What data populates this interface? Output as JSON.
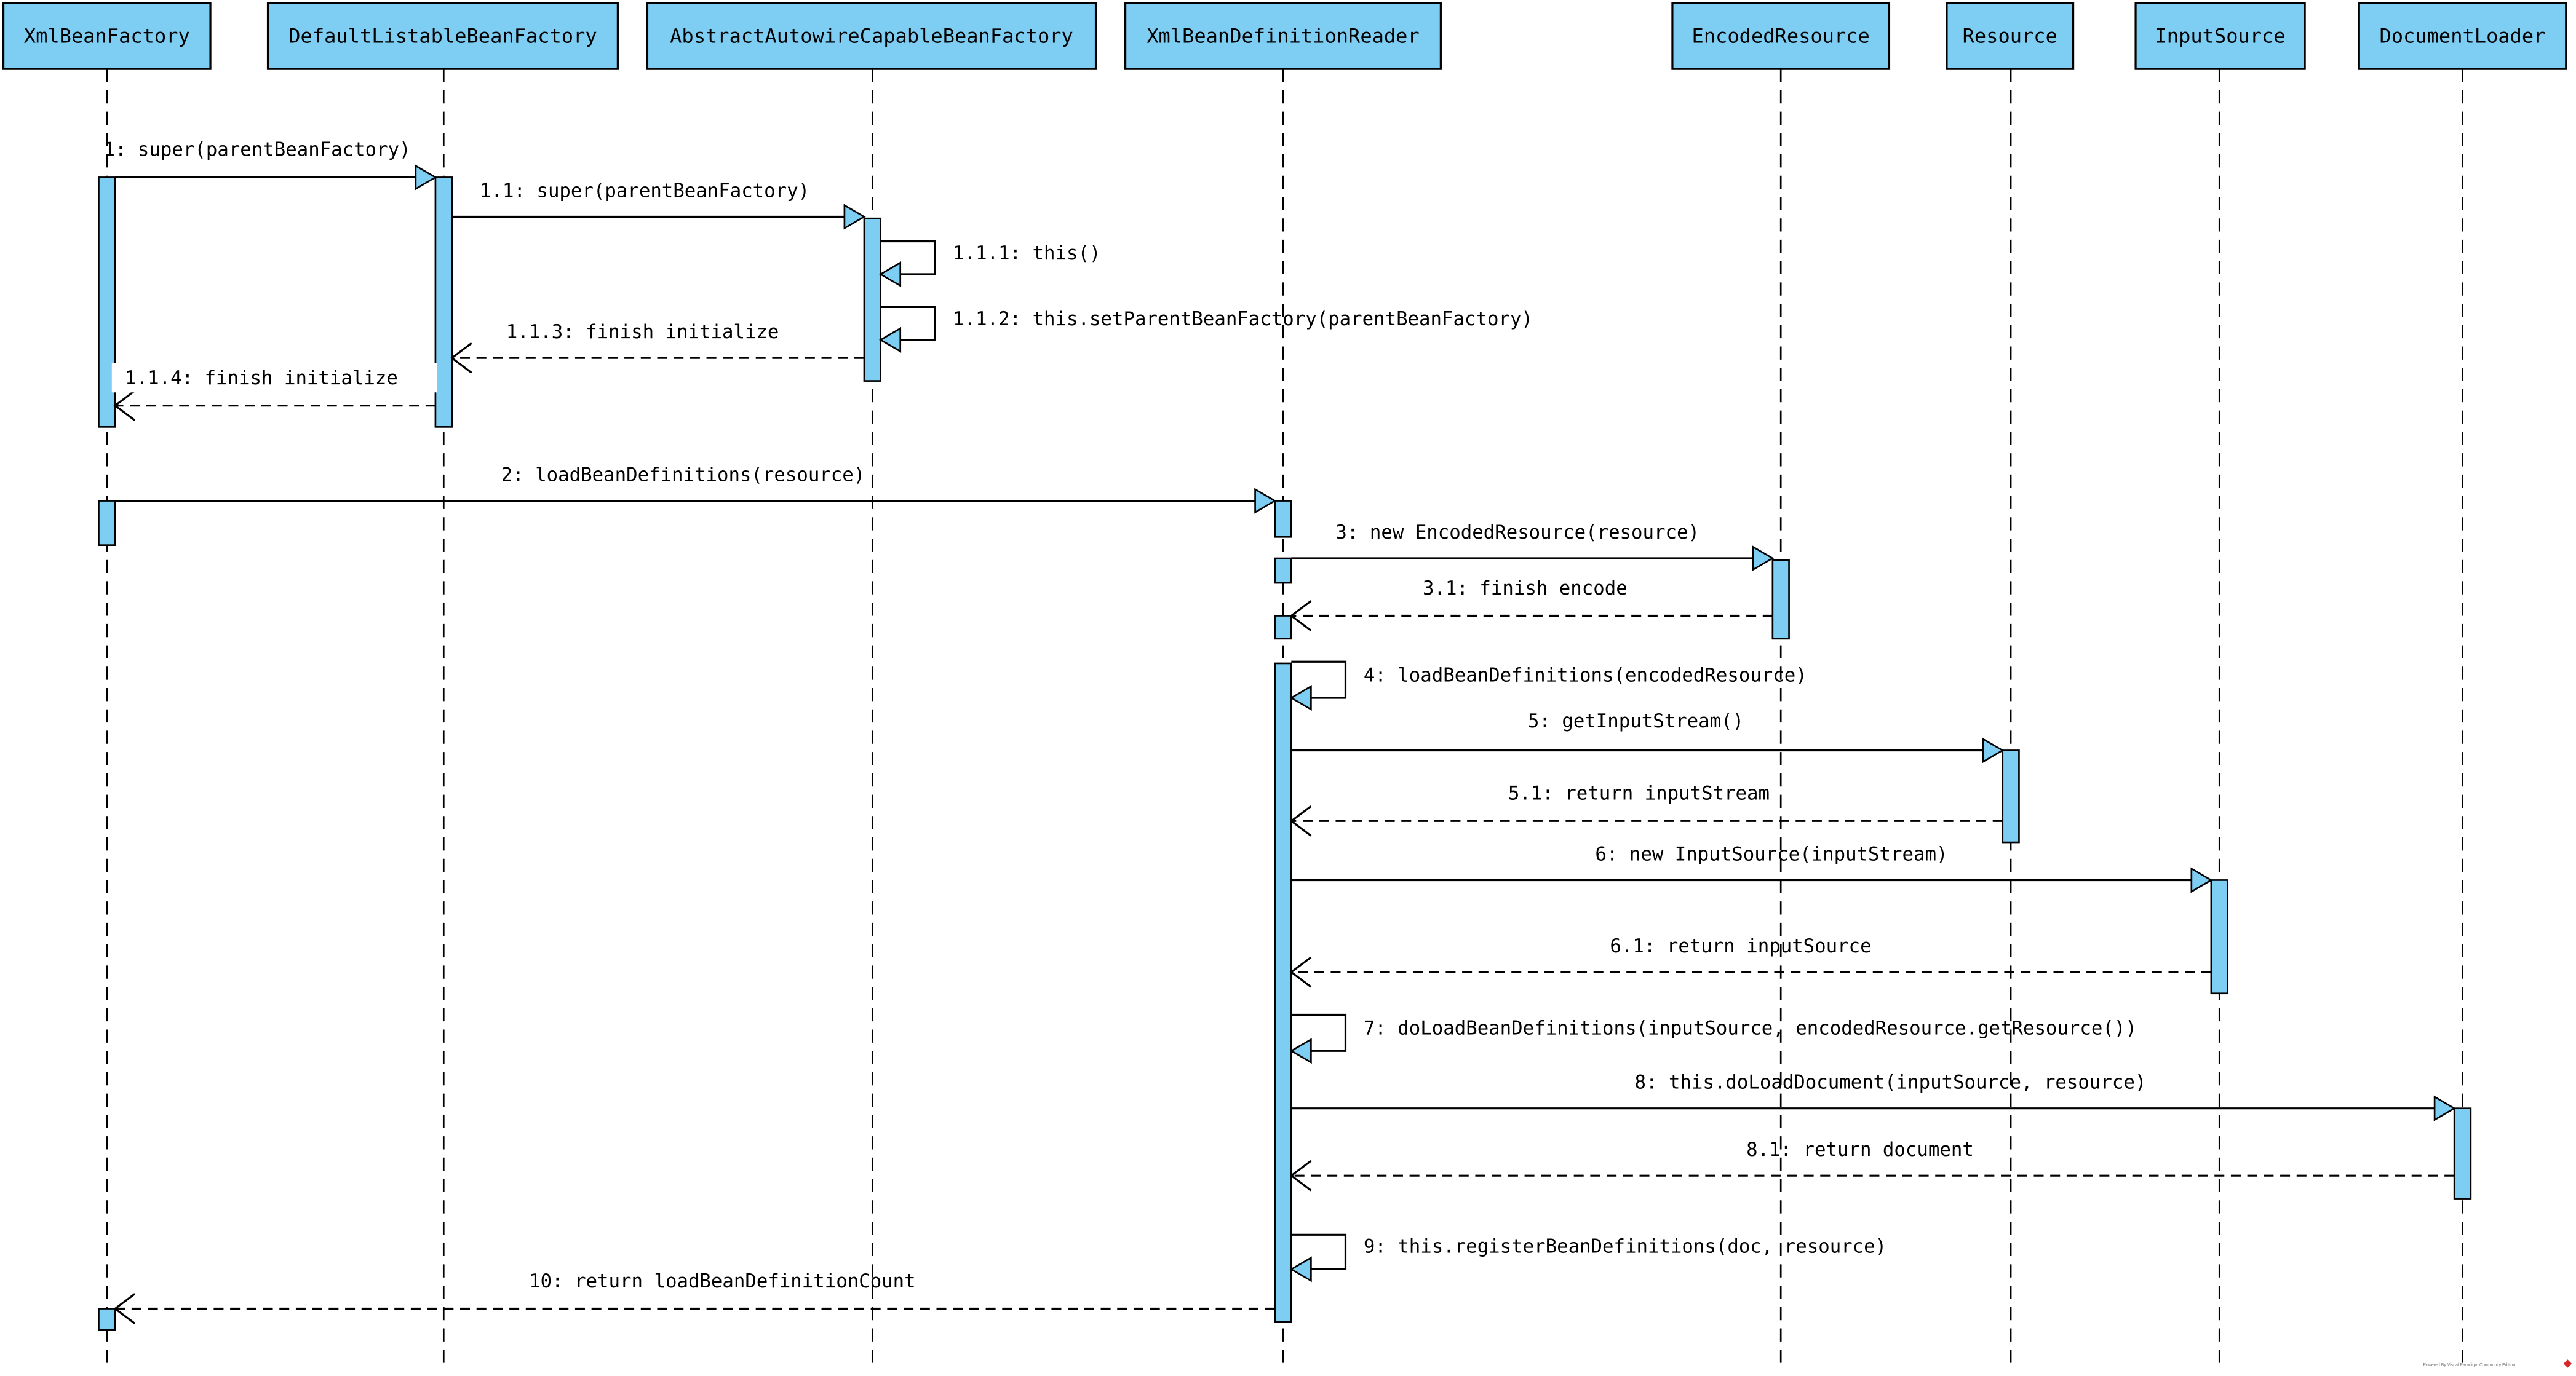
{
  "colors": {
    "participant_fill": "#7ecef4",
    "line": "#000000",
    "watermark_logo": "#d9262b"
  },
  "participants": [
    "XmlBeanFactory",
    "DefaultListableBeanFactory",
    "AbstractAutowireCapableBeanFactory",
    "XmlBeanDefinitionReader",
    "EncodedResource",
    "Resource",
    "InputSource",
    "DocumentLoader"
  ],
  "messages": [
    {
      "label": "1: super(parentBeanFactory)",
      "from": 0,
      "to": 1,
      "kind": "call"
    },
    {
      "label": "1.1: super(parentBeanFactory)",
      "from": 1,
      "to": 2,
      "kind": "call"
    },
    {
      "label": "1.1.1: this()",
      "from": 2,
      "to": 2,
      "kind": "self"
    },
    {
      "label": "1.1.2: this.setParentBeanFactory(parentBeanFactory)",
      "from": 2,
      "to": 2,
      "kind": "self"
    },
    {
      "label": "1.1.3: finish initialize",
      "from": 2,
      "to": 1,
      "kind": "return"
    },
    {
      "label": "1.1.4: finish initialize",
      "from": 1,
      "to": 0,
      "kind": "return"
    },
    {
      "label": "2: loadBeanDefinitions(resource)",
      "from": 0,
      "to": 3,
      "kind": "call"
    },
    {
      "label": "3: new EncodedResource(resource)",
      "from": 3,
      "to": 4,
      "kind": "call"
    },
    {
      "label": "3.1: finish encode",
      "from": 4,
      "to": 3,
      "kind": "return"
    },
    {
      "label": "4: loadBeanDefinitions(encodedResource)",
      "from": 3,
      "to": 3,
      "kind": "self"
    },
    {
      "label": "5: getInputStream()",
      "from": 3,
      "to": 5,
      "kind": "call"
    },
    {
      "label": "5.1: return inputStream",
      "from": 5,
      "to": 3,
      "kind": "return"
    },
    {
      "label": "6: new InputSource(inputStream)",
      "from": 3,
      "to": 6,
      "kind": "call"
    },
    {
      "label": "6.1: return inputSource",
      "from": 6,
      "to": 3,
      "kind": "return"
    },
    {
      "label": "7: doLoadBeanDefinitions(inputSource, encodedResource.getResource())",
      "from": 3,
      "to": 3,
      "kind": "self"
    },
    {
      "label": "8: this.doLoadDocument(inputSource, resource)",
      "from": 3,
      "to": 7,
      "kind": "call"
    },
    {
      "label": "8.1: return document",
      "from": 7,
      "to": 3,
      "kind": "return"
    },
    {
      "label": "9: this.registerBeanDefinitions(doc, resource)",
      "from": 3,
      "to": 3,
      "kind": "self"
    },
    {
      "label": "10: return loadBeanDefinitionCount",
      "from": 3,
      "to": 0,
      "kind": "return"
    }
  ],
  "watermark": "Powered By Visual Paradigm Community Edition"
}
